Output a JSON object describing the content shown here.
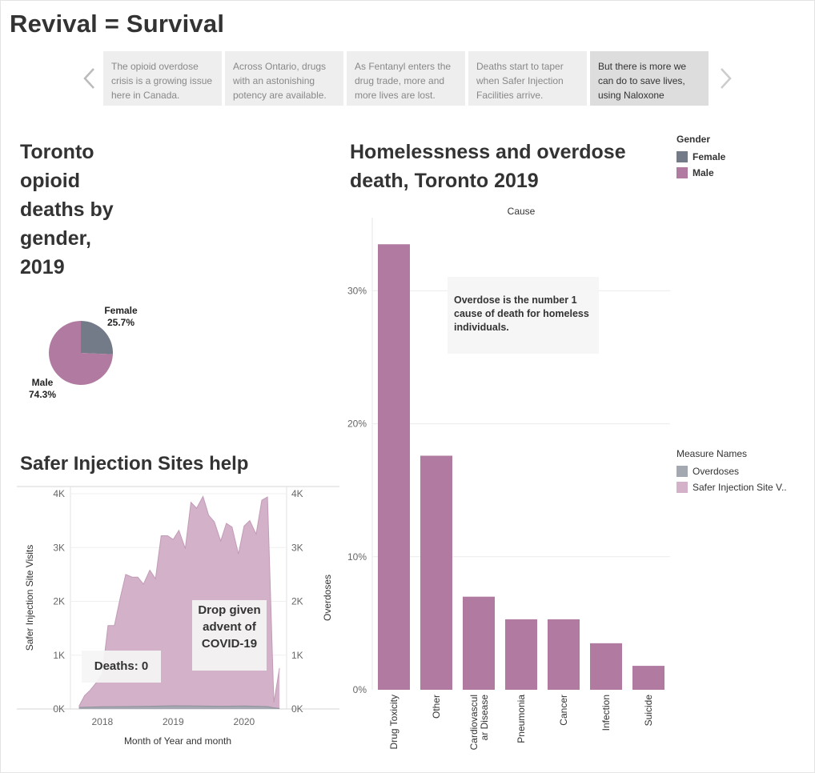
{
  "dashboard": {
    "title": "Revival = Survival"
  },
  "story": {
    "points": [
      "The opioid overdose crisis is a growing issue here in Canada.",
      "Across Ontario, drugs with an astonishing potency are available.",
      "As Fentanyl enters the drug trade, more and more lives are lost.",
      "Deaths start to taper when Safer Injection Facilities arrive.",
      "But there is more we can do to save lives, using Naloxone"
    ],
    "active_index": 4
  },
  "legends": {
    "gender": {
      "title": "Gender",
      "items": [
        {
          "label": "Female",
          "color": "#737a88"
        },
        {
          "label": "Male",
          "color": "#b07aa1"
        }
      ]
    },
    "measure": {
      "title": "Measure Names",
      "items": [
        {
          "label": "Overdoses",
          "color": "#a3a8b1"
        },
        {
          "label": "Safer Injection Site V..",
          "color": "#d3b1c9"
        }
      ]
    }
  },
  "annotations": {
    "overdose": "Overdose is the number 1 cause of death for homeless individuals.",
    "deaths": "Deaths: 0",
    "drop": "Drop given advent of COVID-19"
  },
  "chart_data": [
    {
      "id": "pie",
      "type": "pie",
      "title": "Toronto opioid deaths by gender, 2019",
      "slices": [
        {
          "label": "Female",
          "value": 25.7,
          "display": "25.7%",
          "color": "#737a88"
        },
        {
          "label": "Male",
          "value": 74.3,
          "display": "74.3%",
          "color": "#b07aa1"
        }
      ]
    },
    {
      "id": "bar",
      "type": "bar",
      "title": "Homelessness and overdose death, Toronto 2019",
      "xlabel": "Cause",
      "ylabel": "",
      "categories": [
        "Drug Toxicity",
        "Other",
        "Cardiovascular Disease",
        "Pneumonia",
        "Cancer",
        "Infection",
        "Suicide"
      ],
      "category_lines": [
        [
          "Drug Toxicity"
        ],
        [
          "Other"
        ],
        [
          "Cardiovascul",
          "ar Disease"
        ],
        [
          "Pneumonia"
        ],
        [
          "Cancer"
        ],
        [
          "Infection"
        ],
        [
          "Suicide"
        ]
      ],
      "values": [
        33.5,
        17.6,
        7.0,
        5.3,
        5.3,
        3.5,
        1.8
      ],
      "ylim": [
        0,
        35.5
      ],
      "yticks": [
        0,
        10,
        20,
        30
      ],
      "ytick_labels": [
        "0%",
        "10%",
        "20%",
        "30%"
      ],
      "bar_color": "#b07aa1",
      "grid": true
    },
    {
      "id": "area",
      "type": "area",
      "title": "Safer Injection Sites help",
      "xlabel": "Month of Year and month",
      "ylabel_left": "Safer Injection Site Visits",
      "ylabel_right": "Overdoses",
      "xlim": [
        2017.55,
        2020.6
      ],
      "ylim": [
        0,
        4000
      ],
      "yticks": [
        0,
        1000,
        2000,
        3000,
        4000
      ],
      "ytick_labels": [
        "0K",
        "1K",
        "2K",
        "3K",
        "4K"
      ],
      "xticks": [
        2018,
        2019,
        2020
      ],
      "xtick_labels": [
        "2018",
        "2019",
        "2020"
      ],
      "series": [
        {
          "name": "Safer Injection Site V..",
          "color": "#d3b1c9",
          "x": [
            2017.67,
            2017.75,
            2017.83,
            2017.92,
            2018.0,
            2018.08,
            2018.17,
            2018.25,
            2018.33,
            2018.42,
            2018.5,
            2018.58,
            2018.67,
            2018.75,
            2018.83,
            2018.92,
            2019.0,
            2019.08,
            2019.17,
            2019.25,
            2019.33,
            2019.42,
            2019.5,
            2019.58,
            2019.67,
            2019.75,
            2019.83,
            2019.92,
            2020.0,
            2020.08,
            2020.17,
            2020.25,
            2020.33,
            2020.42,
            2020.5
          ],
          "y": [
            50,
            250,
            350,
            500,
            650,
            1550,
            1550,
            2050,
            2500,
            2450,
            2450,
            2320,
            2580,
            2420,
            3220,
            3220,
            3150,
            3320,
            2980,
            3840,
            3730,
            3950,
            3600,
            3480,
            3120,
            3450,
            3380,
            2880,
            3400,
            3500,
            3250,
            3880,
            3940,
            120,
            760
          ]
        },
        {
          "name": "Overdoses",
          "color": "#a3a8b1",
          "x": [
            2017.67,
            2018.0,
            2018.33,
            2018.67,
            2019.0,
            2019.33,
            2019.67,
            2020.0,
            2020.33,
            2020.42,
            2020.5
          ],
          "y": [
            30,
            40,
            45,
            50,
            60,
            55,
            50,
            55,
            45,
            20,
            10
          ]
        }
      ]
    }
  ]
}
